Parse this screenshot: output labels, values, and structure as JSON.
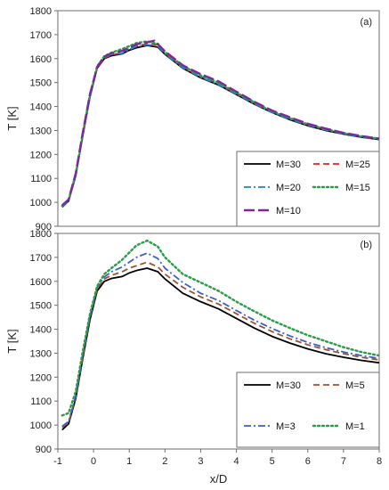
{
  "chart_data": [
    {
      "type": "line",
      "panel_label": "(a)",
      "ylabel": "T [K]",
      "xlabel": "",
      "xlim": [
        -1,
        8
      ],
      "ylim": [
        900,
        1800
      ],
      "yticks": [
        900,
        1000,
        1100,
        1200,
        1300,
        1400,
        1500,
        1600,
        1700,
        1800
      ],
      "xticks": [],
      "grid": false,
      "legend_position": "bottom-right",
      "series": [
        {
          "name": "M=30",
          "color": "#000000",
          "dash": "solid",
          "points": [
            [
              -0.88,
              980
            ],
            [
              -0.7,
              1005
            ],
            [
              -0.5,
              1110
            ],
            [
              -0.3,
              1280
            ],
            [
              -0.1,
              1440
            ],
            [
              0.1,
              1560
            ],
            [
              0.3,
              1600
            ],
            [
              0.5,
              1612
            ],
            [
              0.8,
              1620
            ],
            [
              1.0,
              1635
            ],
            [
              1.2,
              1645
            ],
            [
              1.5,
              1655
            ],
            [
              1.8,
              1648
            ],
            [
              2.0,
              1618
            ],
            [
              2.5,
              1560
            ],
            [
              3.0,
              1520
            ],
            [
              3.5,
              1490
            ],
            [
              4.0,
              1450
            ],
            [
              4.5,
              1410
            ],
            [
              5.0,
              1375
            ],
            [
              5.5,
              1345
            ],
            [
              6.0,
              1320
            ],
            [
              6.5,
              1300
            ],
            [
              7.0,
              1285
            ],
            [
              7.5,
              1272
            ],
            [
              8.0,
              1262
            ]
          ]
        },
        {
          "name": "M=25",
          "color": "#e02020",
          "dash": "dashed",
          "points": [
            [
              -0.88,
              985
            ],
            [
              -0.7,
              1008
            ],
            [
              -0.5,
              1115
            ],
            [
              -0.3,
              1285
            ],
            [
              -0.1,
              1445
            ],
            [
              0.1,
              1562
            ],
            [
              0.3,
              1602
            ],
            [
              0.5,
              1615
            ],
            [
              0.8,
              1625
            ],
            [
              1.0,
              1642
            ],
            [
              1.2,
              1652
            ],
            [
              1.5,
              1662
            ],
            [
              1.8,
              1658
            ],
            [
              2.0,
              1622
            ],
            [
              2.5,
              1565
            ],
            [
              3.0,
              1525
            ],
            [
              3.5,
              1495
            ],
            [
              4.0,
              1455
            ],
            [
              4.5,
              1415
            ],
            [
              5.0,
              1378
            ],
            [
              5.5,
              1350
            ],
            [
              6.0,
              1325
            ],
            [
              6.5,
              1305
            ],
            [
              7.0,
              1288
            ],
            [
              7.5,
              1275
            ],
            [
              8.0,
              1265
            ]
          ]
        },
        {
          "name": "M=20",
          "color": "#1f86c7",
          "dash": "dashdot",
          "points": [
            [
              -0.88,
              982
            ],
            [
              -0.7,
              1006
            ],
            [
              -0.5,
              1112
            ],
            [
              -0.3,
              1282
            ],
            [
              -0.1,
              1442
            ],
            [
              0.1,
              1565
            ],
            [
              0.3,
              1605
            ],
            [
              0.5,
              1618
            ],
            [
              0.8,
              1622
            ],
            [
              1.0,
              1638
            ],
            [
              1.2,
              1650
            ],
            [
              1.5,
              1658
            ],
            [
              1.8,
              1652
            ],
            [
              2.0,
              1620
            ],
            [
              2.5,
              1562
            ],
            [
              3.0,
              1522
            ],
            [
              3.5,
              1492
            ],
            [
              4.0,
              1452
            ],
            [
              4.5,
              1412
            ],
            [
              5.0,
              1376
            ],
            [
              5.5,
              1347
            ],
            [
              6.0,
              1322
            ],
            [
              6.5,
              1302
            ],
            [
              7.0,
              1286
            ],
            [
              7.5,
              1273
            ],
            [
              8.0,
              1263
            ]
          ]
        },
        {
          "name": "M=15",
          "color": "#2a9d4a",
          "dash": "dotted",
          "points": [
            [
              -0.88,
              985
            ],
            [
              -0.7,
              1010
            ],
            [
              -0.5,
              1118
            ],
            [
              -0.3,
              1290
            ],
            [
              -0.1,
              1450
            ],
            [
              0.1,
              1568
            ],
            [
              0.3,
              1610
            ],
            [
              0.5,
              1625
            ],
            [
              0.8,
              1640
            ],
            [
              1.0,
              1652
            ],
            [
              1.2,
              1665
            ],
            [
              1.5,
              1672
            ],
            [
              1.8,
              1662
            ],
            [
              2.0,
              1628
            ],
            [
              2.5,
              1570
            ],
            [
              3.0,
              1530
            ],
            [
              3.5,
              1500
            ],
            [
              4.0,
              1458
            ],
            [
              4.5,
              1418
            ],
            [
              5.0,
              1380
            ],
            [
              5.5,
              1352
            ],
            [
              6.0,
              1326
            ],
            [
              6.5,
              1306
            ],
            [
              7.0,
              1289
            ],
            [
              7.5,
              1276
            ],
            [
              8.0,
              1266
            ]
          ]
        },
        {
          "name": "M=10",
          "color": "#7a2a9a",
          "dash": "longdash",
          "points": [
            [
              -0.88,
              988
            ],
            [
              -0.7,
              1012
            ],
            [
              -0.5,
              1120
            ],
            [
              -0.3,
              1292
            ],
            [
              -0.1,
              1452
            ],
            [
              0.1,
              1565
            ],
            [
              0.3,
              1608
            ],
            [
              0.5,
              1622
            ],
            [
              0.8,
              1632
            ],
            [
              1.0,
              1645
            ],
            [
              1.2,
              1660
            ],
            [
              1.5,
              1668
            ],
            [
              1.7,
              1675
            ],
            [
              2.0,
              1630
            ],
            [
              2.5,
              1572
            ],
            [
              3.0,
              1535
            ],
            [
              3.5,
              1505
            ],
            [
              4.0,
              1462
            ],
            [
              4.5,
              1420
            ],
            [
              5.0,
              1383
            ],
            [
              5.5,
              1355
            ],
            [
              6.0,
              1328
            ],
            [
              6.5,
              1308
            ],
            [
              7.0,
              1290
            ],
            [
              7.5,
              1277
            ],
            [
              8.0,
              1266
            ]
          ]
        }
      ]
    },
    {
      "type": "line",
      "panel_label": "(b)",
      "ylabel": "T [K]",
      "xlabel": "x/D",
      "xlim": [
        -1,
        8
      ],
      "ylim": [
        900,
        1800
      ],
      "yticks": [
        900,
        1000,
        1100,
        1200,
        1300,
        1400,
        1500,
        1600,
        1700,
        1800
      ],
      "xticks": [
        -1,
        0,
        1,
        2,
        3,
        4,
        5,
        6,
        7,
        8
      ],
      "grid": false,
      "legend_position": "bottom-right",
      "series": [
        {
          "name": "M=30",
          "color": "#000000",
          "dash": "solid",
          "points": [
            [
              -0.88,
              980
            ],
            [
              -0.7,
              1005
            ],
            [
              -0.5,
              1110
            ],
            [
              -0.3,
              1280
            ],
            [
              -0.1,
              1440
            ],
            [
              0.1,
              1560
            ],
            [
              0.3,
              1600
            ],
            [
              0.5,
              1612
            ],
            [
              0.8,
              1620
            ],
            [
              1.0,
              1635
            ],
            [
              1.2,
              1645
            ],
            [
              1.5,
              1655
            ],
            [
              1.8,
              1640
            ],
            [
              2.0,
              1610
            ],
            [
              2.5,
              1550
            ],
            [
              3.0,
              1515
            ],
            [
              3.5,
              1485
            ],
            [
              4.0,
              1445
            ],
            [
              4.5,
              1405
            ],
            [
              5.0,
              1370
            ],
            [
              5.5,
              1342
            ],
            [
              6.0,
              1318
            ],
            [
              6.5,
              1298
            ],
            [
              7.0,
              1283
            ],
            [
              7.5,
              1270
            ],
            [
              8.0,
              1260
            ]
          ]
        },
        {
          "name": "M=5",
          "color": "#a0522d",
          "dash": "dashed",
          "points": [
            [
              -0.88,
              990
            ],
            [
              -0.7,
              1010
            ],
            [
              -0.5,
              1118
            ],
            [
              -0.3,
              1290
            ],
            [
              -0.1,
              1450
            ],
            [
              0.1,
              1570
            ],
            [
              0.3,
              1610
            ],
            [
              0.5,
              1625
            ],
            [
              0.8,
              1640
            ],
            [
              1.0,
              1655
            ],
            [
              1.2,
              1665
            ],
            [
              1.5,
              1680
            ],
            [
              1.8,
              1660
            ],
            [
              2.0,
              1630
            ],
            [
              2.5,
              1575
            ],
            [
              3.0,
              1535
            ],
            [
              3.5,
              1505
            ],
            [
              4.0,
              1465
            ],
            [
              4.5,
              1425
            ],
            [
              5.0,
              1390
            ],
            [
              5.5,
              1360
            ],
            [
              6.0,
              1335
            ],
            [
              6.5,
              1315
            ],
            [
              7.0,
              1298
            ],
            [
              7.5,
              1283
            ],
            [
              8.0,
              1272
            ]
          ]
        },
        {
          "name": "M=3",
          "color": "#3a5fcd",
          "dash": "dashdot",
          "points": [
            [
              -0.88,
              995
            ],
            [
              -0.7,
              1015
            ],
            [
              -0.5,
              1122
            ],
            [
              -0.3,
              1295
            ],
            [
              -0.1,
              1455
            ],
            [
              0.1,
              1575
            ],
            [
              0.3,
              1618
            ],
            [
              0.5,
              1640
            ],
            [
              0.8,
              1660
            ],
            [
              1.0,
              1680
            ],
            [
              1.2,
              1700
            ],
            [
              1.5,
              1718
            ],
            [
              1.8,
              1695
            ],
            [
              2.0,
              1655
            ],
            [
              2.5,
              1595
            ],
            [
              3.0,
              1550
            ],
            [
              3.5,
              1520
            ],
            [
              4.0,
              1478
            ],
            [
              4.5,
              1438
            ],
            [
              5.0,
              1403
            ],
            [
              5.5,
              1372
            ],
            [
              6.0,
              1345
            ],
            [
              6.5,
              1323
            ],
            [
              7.0,
              1305
            ],
            [
              7.5,
              1290
            ],
            [
              8.0,
              1278
            ]
          ]
        },
        {
          "name": "M=1",
          "color": "#2a9d4a",
          "dash": "dotted",
          "points": [
            [
              -0.88,
              1040
            ],
            [
              -0.7,
              1050
            ],
            [
              -0.5,
              1140
            ],
            [
              -0.3,
              1310
            ],
            [
              -0.1,
              1465
            ],
            [
              0.1,
              1580
            ],
            [
              0.3,
              1630
            ],
            [
              0.5,
              1655
            ],
            [
              0.8,
              1690
            ],
            [
              1.0,
              1720
            ],
            [
              1.2,
              1750
            ],
            [
              1.5,
              1770
            ],
            [
              1.8,
              1745
            ],
            [
              2.0,
              1700
            ],
            [
              2.5,
              1630
            ],
            [
              3.0,
              1595
            ],
            [
              3.5,
              1560
            ],
            [
              4.0,
              1515
            ],
            [
              4.5,
              1475
            ],
            [
              5.0,
              1437
            ],
            [
              5.5,
              1405
            ],
            [
              6.0,
              1375
            ],
            [
              6.5,
              1350
            ],
            [
              7.0,
              1325
            ],
            [
              7.5,
              1305
            ],
            [
              8.0,
              1290
            ]
          ]
        }
      ]
    }
  ]
}
